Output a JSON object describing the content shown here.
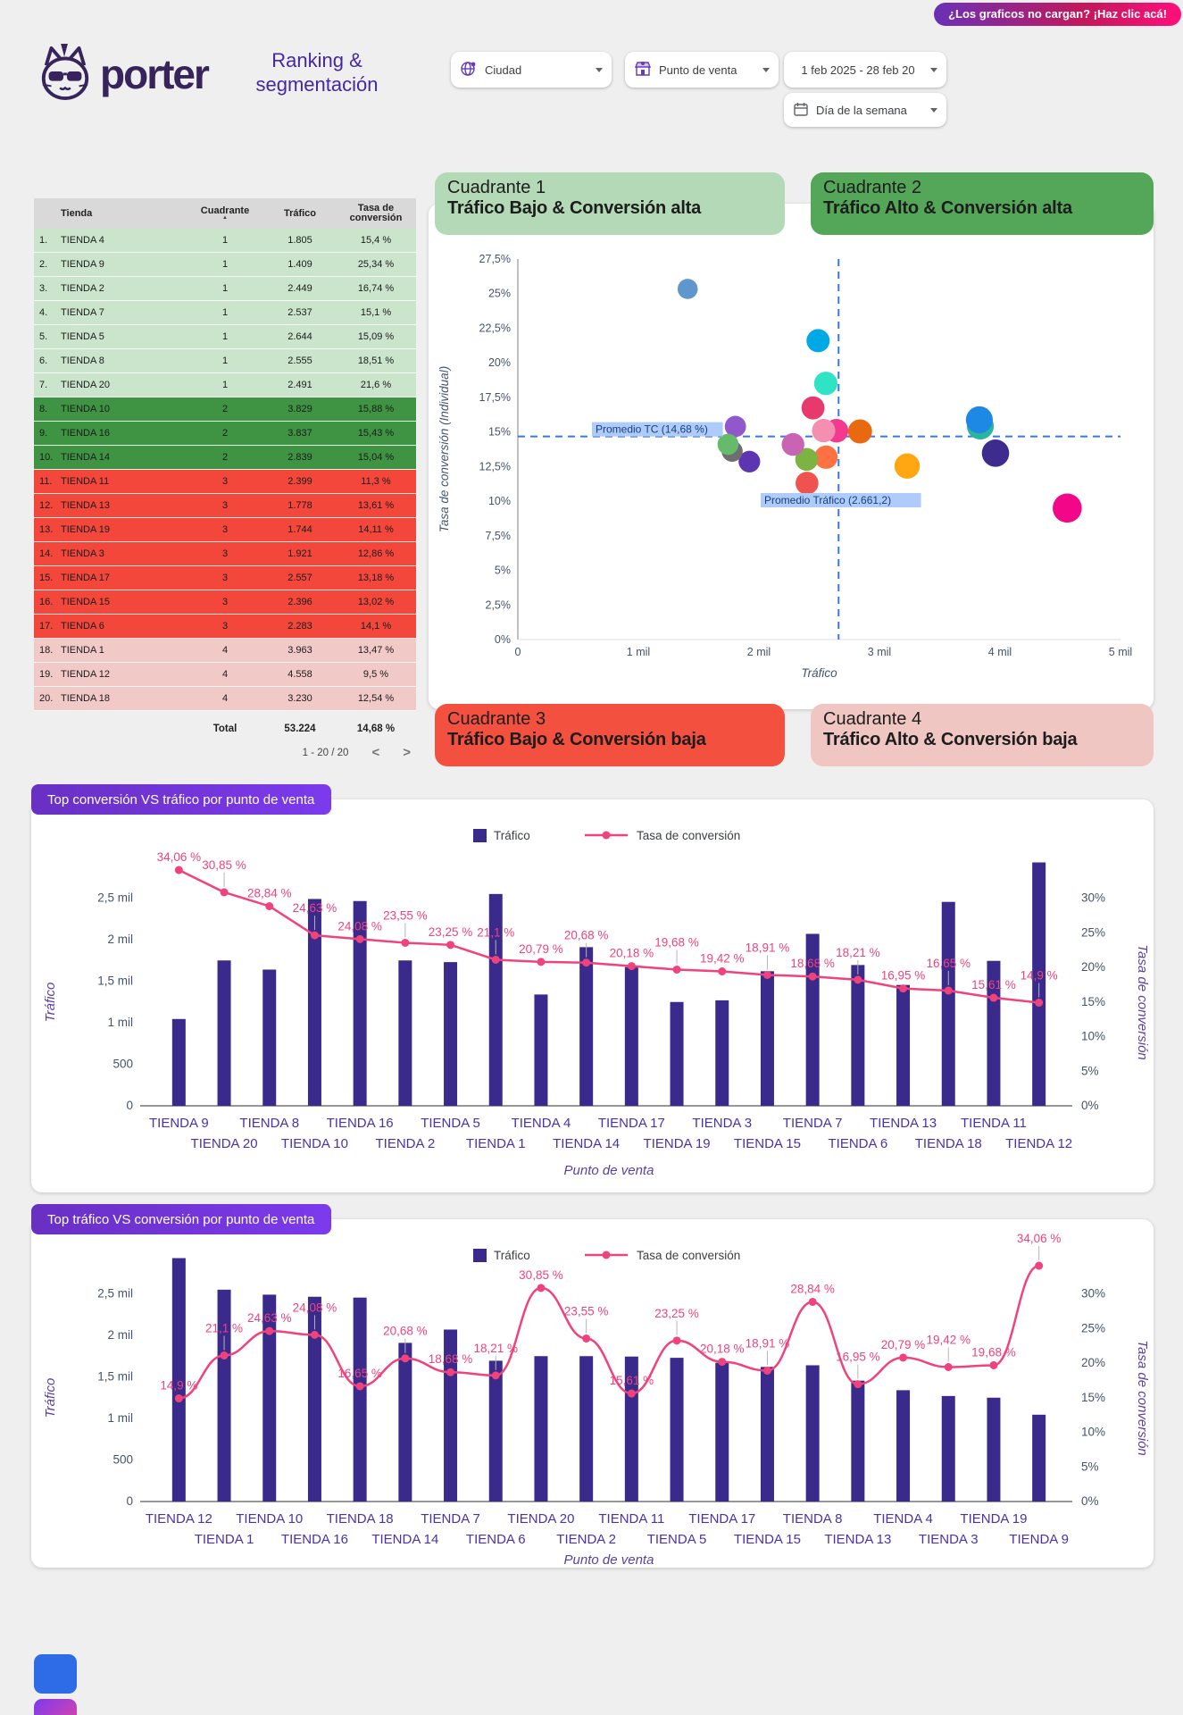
{
  "badge": {
    "label": "¿Los graficos no cargan? ¡Haz clic acá!"
  },
  "header": {
    "logo_text": "porter",
    "title_line1": "Ranking &",
    "title_line2": "segmentación"
  },
  "filters": {
    "ciudad": "Ciudad",
    "punto_de_venta": "Punto de venta",
    "fecha": "1 feb 2025 - 28 feb 20",
    "dia_semana": "Día de la semana"
  },
  "table": {
    "headers": {
      "tienda": "Tienda",
      "cuadrante": "Cuadrante",
      "trafico": "Tráfico",
      "tasa1": "Tasa de",
      "tasa2": "conversión"
    },
    "rows": [
      {
        "rank": "1.",
        "tienda": "TIENDA 4",
        "cuadrante": "1",
        "trafico": "1.805",
        "tasa": "15,4 %",
        "group": 1
      },
      {
        "rank": "2.",
        "tienda": "TIENDA 9",
        "cuadrante": "1",
        "trafico": "1.409",
        "tasa": "25,34 %",
        "group": 1
      },
      {
        "rank": "3.",
        "tienda": "TIENDA 2",
        "cuadrante": "1",
        "trafico": "2.449",
        "tasa": "16,74 %",
        "group": 1
      },
      {
        "rank": "4.",
        "tienda": "TIENDA 7",
        "cuadrante": "1",
        "trafico": "2.537",
        "tasa": "15,1 %",
        "group": 1
      },
      {
        "rank": "5.",
        "tienda": "TIENDA 5",
        "cuadrante": "1",
        "trafico": "2.644",
        "tasa": "15,09 %",
        "group": 1
      },
      {
        "rank": "6.",
        "tienda": "TIENDA 8",
        "cuadrante": "1",
        "trafico": "2.555",
        "tasa": "18,51 %",
        "group": 1
      },
      {
        "rank": "7.",
        "tienda": "TIENDA 20",
        "cuadrante": "1",
        "trafico": "2.491",
        "tasa": "21,6 %",
        "group": 1
      },
      {
        "rank": "8.",
        "tienda": "TIENDA 10",
        "cuadrante": "2",
        "trafico": "3.829",
        "tasa": "15,88 %",
        "group": 2
      },
      {
        "rank": "9.",
        "tienda": "TIENDA 16",
        "cuadrante": "2",
        "trafico": "3.837",
        "tasa": "15,43 %",
        "group": 2
      },
      {
        "rank": "10.",
        "tienda": "TIENDA 14",
        "cuadrante": "2",
        "trafico": "2.839",
        "tasa": "15,04 %",
        "group": 2
      },
      {
        "rank": "11.",
        "tienda": "TIENDA 11",
        "cuadrante": "3",
        "trafico": "2.399",
        "tasa": "11,3 %",
        "group": 3
      },
      {
        "rank": "12.",
        "tienda": "TIENDA 13",
        "cuadrante": "3",
        "trafico": "1.778",
        "tasa": "13,61 %",
        "group": 3
      },
      {
        "rank": "13.",
        "tienda": "TIENDA 19",
        "cuadrante": "3",
        "trafico": "1.744",
        "tasa": "14,11 %",
        "group": 3
      },
      {
        "rank": "14.",
        "tienda": "TIENDA 3",
        "cuadrante": "3",
        "trafico": "1.921",
        "tasa": "12,86 %",
        "group": 3
      },
      {
        "rank": "15.",
        "tienda": "TIENDA 17",
        "cuadrante": "3",
        "trafico": "2.557",
        "tasa": "13,18 %",
        "group": 3
      },
      {
        "rank": "16.",
        "tienda": "TIENDA 15",
        "cuadrante": "3",
        "trafico": "2.396",
        "tasa": "13,02 %",
        "group": 3
      },
      {
        "rank": "17.",
        "tienda": "TIENDA 6",
        "cuadrante": "3",
        "trafico": "2.283",
        "tasa": "14,1 %",
        "group": 3
      },
      {
        "rank": "18.",
        "tienda": "TIENDA 1",
        "cuadrante": "4",
        "trafico": "3.963",
        "tasa": "13,47 %",
        "group": 4
      },
      {
        "rank": "19.",
        "tienda": "TIENDA 12",
        "cuadrante": "4",
        "trafico": "4.558",
        "tasa": "9,5 %",
        "group": 4
      },
      {
        "rank": "20.",
        "tienda": "TIENDA 18",
        "cuadrante": "4",
        "trafico": "3.230",
        "tasa": "12,54 %",
        "group": 4
      }
    ],
    "total": {
      "label": "Total",
      "trafico": "53.224",
      "tasa": "14,68 %"
    },
    "pagination": {
      "label": "1 - 20 / 20",
      "prev": "<",
      "next": ">"
    }
  },
  "quadrants": [
    {
      "name": "Cuadrante 1",
      "subtitle": "Tráfico Bajo & Conversión alta",
      "color": "#B3D9B6"
    },
    {
      "name": "Cuadrante 2",
      "subtitle": "Tráfico Alto & Conversión alta",
      "color": "#54A758"
    },
    {
      "name": "Cuadrante 3",
      "subtitle": "Tráfico Bajo & Conversión baja",
      "color": "#F4503F"
    },
    {
      "name": "Cuadrante 4",
      "subtitle": "Tráfico Alto & Conversión baja",
      "color": "#F0C6C3"
    }
  ],
  "chart_data": [
    {
      "type": "scatter",
      "xlabel": "Tráfico",
      "ylabel": "Tasa de conversión (Individual)",
      "xlim": [
        0,
        5000
      ],
      "ylim": [
        0,
        27.5
      ],
      "x_ticks": [
        "0",
        "1 mil",
        "2 mil",
        "3 mil",
        "4 mil",
        "5 mil"
      ],
      "y_ticks": [
        "0%",
        "2,5%",
        "5%",
        "7,5%",
        "10%",
        "12,5%",
        "15%",
        "17,5%",
        "20%",
        "22,5%",
        "25%",
        "27,5%"
      ],
      "avg_tc": 14.68,
      "avg_tc_label": "Promedio TC (14,68 %)",
      "avg_trafico": 2661.2,
      "avg_trafico_label": "Promedio Tráfico (2.661,2)",
      "grid": false,
      "points": [
        {
          "name": "TIENDA 12",
          "x": 4558,
          "y": 9.5,
          "color": "#F20789"
        },
        {
          "name": "TIENDA 1",
          "x": 3963,
          "y": 13.47,
          "color": "#3D2C8D"
        },
        {
          "name": "TIENDA 16",
          "x": 3837,
          "y": 15.43,
          "color": "#2BB5A0"
        },
        {
          "name": "TIENDA 10",
          "x": 3829,
          "y": 15.88,
          "color": "#1E88E5"
        },
        {
          "name": "TIENDA 18",
          "x": 3230,
          "y": 12.54,
          "color": "#FFA712"
        },
        {
          "name": "TIENDA 14",
          "x": 2839,
          "y": 15.04,
          "color": "#E8690F"
        },
        {
          "name": "TIENDA 5",
          "x": 2644,
          "y": 15.09,
          "color": "#F23B8F"
        },
        {
          "name": "TIENDA 17",
          "x": 2557,
          "y": 13.18,
          "color": "#FF7043"
        },
        {
          "name": "TIENDA 8",
          "x": 2555,
          "y": 18.51,
          "color": "#30E3C4"
        },
        {
          "name": "TIENDA 7",
          "x": 2537,
          "y": 15.1,
          "color": "#F48FB1"
        },
        {
          "name": "TIENDA 20",
          "x": 2491,
          "y": 21.6,
          "color": "#00A9E6"
        },
        {
          "name": "TIENDA 2",
          "x": 2449,
          "y": 16.74,
          "color": "#E8396F"
        },
        {
          "name": "TIENDA 11",
          "x": 2399,
          "y": 11.3,
          "color": "#EF5350"
        },
        {
          "name": "TIENDA 15",
          "x": 2396,
          "y": 13.02,
          "color": "#7CB342"
        },
        {
          "name": "TIENDA 6",
          "x": 2283,
          "y": 14.1,
          "color": "#C964B5"
        },
        {
          "name": "TIENDA 3",
          "x": 1921,
          "y": 12.86,
          "color": "#5E35B1"
        },
        {
          "name": "TIENDA 4",
          "x": 1805,
          "y": 15.4,
          "color": "#9357CC"
        },
        {
          "name": "TIENDA 13",
          "x": 1778,
          "y": 13.61,
          "color": "#6E6E6E"
        },
        {
          "name": "TIENDA 19",
          "x": 1744,
          "y": 14.11,
          "color": "#66BB6A"
        },
        {
          "name": "TIENDA 9",
          "x": 1409,
          "y": 25.34,
          "color": "#6096CE"
        }
      ]
    },
    {
      "type": "bar+line",
      "title": "Top conversión VS tráfico por punto de venta",
      "legend": [
        "Tráfico",
        "Tasa de conversión"
      ],
      "xlabel": "Punto de venta",
      "ylabel_left": "Tráfico",
      "ylabel_right": "Tasa de conversión",
      "left_ticks": [
        "0",
        "500",
        "1 mil",
        "1,5 mil",
        "2 mil",
        "2,5 mil"
      ],
      "right_ticks": [
        "0%",
        "5%",
        "10%",
        "15%",
        "20%",
        "25%",
        "30%"
      ],
      "categories": [
        "TIENDA 9",
        "TIENDA 20",
        "TIENDA 8",
        "TIENDA 10",
        "TIENDA 16",
        "TIENDA 2",
        "TIENDA 5",
        "TIENDA 1",
        "TIENDA 4",
        "TIENDA 14",
        "TIENDA 17",
        "TIENDA 19",
        "TIENDA 3",
        "TIENDA 15",
        "TIENDA 7",
        "TIENDA 6",
        "TIENDA 13",
        "TIENDA 18",
        "TIENDA 11",
        "TIENDA 12"
      ],
      "bars": [
        1045,
        1750,
        1640,
        2490,
        2465,
        1750,
        1730,
        2550,
        1340,
        1910,
        1670,
        1250,
        1270,
        1620,
        2070,
        1695,
        1455,
        2455,
        1745,
        2930
      ],
      "line_pct": [
        34.06,
        30.85,
        28.84,
        24.63,
        24.08,
        23.55,
        23.25,
        21.1,
        20.79,
        20.68,
        20.18,
        19.68,
        19.42,
        18.91,
        18.68,
        18.21,
        16.95,
        16.65,
        15.61,
        14.9
      ],
      "line_labels": [
        "34,06 %",
        "30,85 %",
        "28,84 %",
        "24,63 %",
        "24,08 %",
        "23,55 %",
        "23,25 %",
        "21,1 %",
        "20,79 %",
        "20,68 %",
        "20,18 %",
        "19,68 %",
        "19,42 %",
        "18,91 %",
        "18,68 %",
        "18,21 %",
        "16,95 %",
        "16,65 %",
        "15,61 %",
        "14,9 %"
      ],
      "smooth": false
    },
    {
      "type": "bar+line",
      "title": "Top tráfico VS conversión por punto de venta",
      "legend": [
        "Tráfico",
        "Tasa de conversión"
      ],
      "xlabel": "Punto de venta",
      "ylabel_left": "Tráfico",
      "ylabel_right": "Tasa de conversión",
      "left_ticks": [
        "0",
        "500",
        "1 mil",
        "1,5 mil",
        "2 mil",
        "2,5 mil"
      ],
      "right_ticks": [
        "0%",
        "5%",
        "10%",
        "15%",
        "20%",
        "25%",
        "30%"
      ],
      "categories": [
        "TIENDA 12",
        "TIENDA 1",
        "TIENDA 10",
        "TIENDA 16",
        "TIENDA 18",
        "TIENDA 14",
        "TIENDA 7",
        "TIENDA 6",
        "TIENDA 20",
        "TIENDA 2",
        "TIENDA 11",
        "TIENDA 5",
        "TIENDA 17",
        "TIENDA 15",
        "TIENDA 8",
        "TIENDA 13",
        "TIENDA 4",
        "TIENDA 3",
        "TIENDA 19",
        "TIENDA 9"
      ],
      "bars": [
        2930,
        2550,
        2490,
        2465,
        2455,
        1910,
        2070,
        1695,
        1750,
        1750,
        1745,
        1730,
        1670,
        1620,
        1640,
        1455,
        1340,
        1270,
        1250,
        1045
      ],
      "line_pct": [
        14.9,
        21.1,
        24.63,
        24.08,
        16.65,
        20.68,
        18.68,
        18.21,
        30.85,
        23.55,
        15.61,
        23.25,
        20.18,
        18.91,
        28.84,
        16.95,
        20.79,
        19.42,
        19.68,
        34.06
      ],
      "line_labels": [
        "14,9 %",
        "21,1 %",
        "24,63 %",
        "24,08 %",
        "16,65 %",
        "20,68 %",
        "18,68 %",
        "18,21 %",
        "30,85 %",
        "23,55 %",
        "15,61 %",
        "23,25 %",
        "20,18 %",
        "18,91 %",
        "28,84 %",
        "16,95 %",
        "20,79 %",
        "19,42 %",
        "19,68 %",
        "34,06 %"
      ],
      "smooth": true
    }
  ],
  "colors": {
    "bar": "#3A2A8C",
    "line": "#F0437C",
    "axis_tick": "#44546A",
    "axis_title": "#5B3FA8",
    "cat_label": "#4B32A8",
    "dashed": "#3B78DE",
    "promedio_bg": "#AECBFA",
    "promedio_text": "#17407E"
  }
}
